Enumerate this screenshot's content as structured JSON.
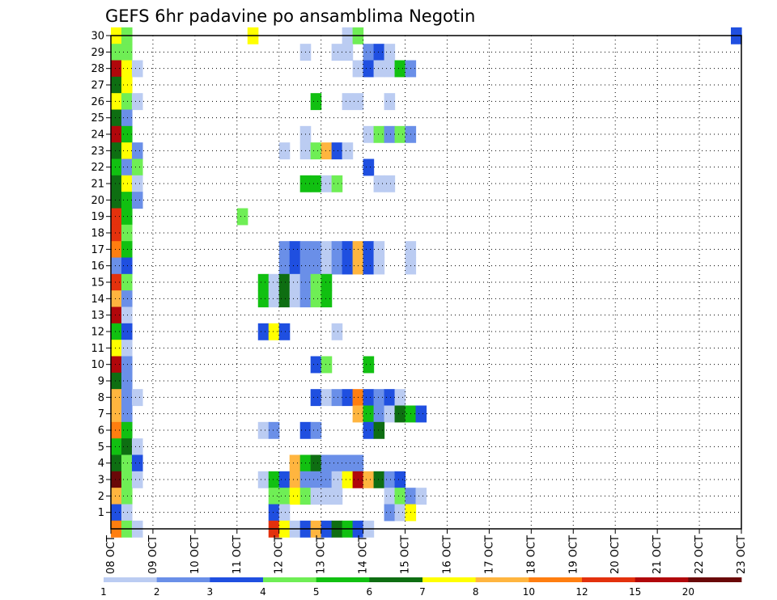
{
  "chart_data": {
    "type": "heatmap",
    "title": "GEFS 6hr padavine po ansamblima Negotin",
    "x_tick_labels": [
      "08 OCT",
      "09 OCT",
      "10 OCT",
      "11 OCT",
      "12 OCT",
      "13 OCT",
      "14 OCT",
      "15 OCT",
      "16 OCT",
      "17 OCT",
      "18 OCT",
      "19 OCT",
      "20 OCT",
      "21 OCT",
      "22 OCT",
      "23 OCT"
    ],
    "y_tick_labels": [
      "1",
      "2",
      "3",
      "4",
      "5",
      "6",
      "7",
      "8",
      "9",
      "10",
      "11",
      "12",
      "13",
      "14",
      "15",
      "16",
      "17",
      "18",
      "19",
      "20",
      "21",
      "22",
      "23",
      "24",
      "25",
      "26",
      "27",
      "28",
      "29",
      "30"
    ],
    "x_range_days": [
      0,
      15
    ],
    "y_range_members": [
      0,
      30
    ],
    "grid": "dotted",
    "legend": {
      "position": "bottom",
      "labels": [
        "1",
        "2",
        "3",
        "4",
        "5",
        "6",
        "7",
        "8",
        "10",
        "12",
        "15",
        "20"
      ],
      "colors": [
        "#BBCCF2",
        "#6A8FE8",
        "#1F4FE0",
        "#6FEE55",
        "#11C011",
        "#0E6E12",
        "#FFFF00",
        "#FFB53F",
        "#FF7E10",
        "#E3310D",
        "#B1070B",
        "#6A0808"
      ]
    },
    "colors": [
      "#BBCCF2",
      "#6A8FE8",
      "#1F4FE0",
      "#6FEE55",
      "#11C011",
      "#0E6E12",
      "#FFFF00",
      "#FFB53F",
      "#FF7E10",
      "#E3310D",
      "#B1070B",
      "#6A0808"
    ],
    "cell_days": 0.25,
    "cell_format": "[member, time_step_index (6h steps from 08 OCT 00z), color_class (1-12)]",
    "cells": [
      [
        30,
        0,
        7
      ],
      [
        30,
        1,
        4
      ],
      [
        30,
        13,
        7
      ],
      [
        30,
        22,
        1
      ],
      [
        30,
        23,
        4
      ],
      [
        30,
        59,
        3
      ],
      [
        29,
        0,
        4
      ],
      [
        29,
        1,
        4
      ],
      [
        29,
        18,
        1
      ],
      [
        29,
        21,
        1
      ],
      [
        29,
        22,
        1
      ],
      [
        29,
        24,
        2
      ],
      [
        29,
        25,
        3
      ],
      [
        29,
        26,
        1
      ],
      [
        28,
        0,
        11
      ],
      [
        28,
        1,
        7
      ],
      [
        28,
        2,
        1
      ],
      [
        28,
        23,
        1
      ],
      [
        28,
        24,
        3
      ],
      [
        28,
        25,
        1
      ],
      [
        28,
        26,
        1
      ],
      [
        28,
        27,
        5
      ],
      [
        28,
        28,
        2
      ],
      [
        27,
        0,
        6
      ],
      [
        27,
        1,
        7
      ],
      [
        26,
        0,
        7
      ],
      [
        26,
        1,
        4
      ],
      [
        26,
        2,
        1
      ],
      [
        26,
        19,
        5
      ],
      [
        26,
        22,
        1
      ],
      [
        26,
        23,
        1
      ],
      [
        26,
        26,
        1
      ],
      [
        25,
        0,
        6
      ],
      [
        25,
        1,
        2
      ],
      [
        24,
        0,
        11
      ],
      [
        24,
        1,
        5
      ],
      [
        24,
        18,
        1
      ],
      [
        24,
        24,
        1
      ],
      [
        24,
        25,
        4
      ],
      [
        24,
        26,
        2
      ],
      [
        24,
        27,
        4
      ],
      [
        24,
        28,
        2
      ],
      [
        23,
        0,
        6
      ],
      [
        23,
        1,
        7
      ],
      [
        23,
        2,
        2
      ],
      [
        23,
        16,
        1
      ],
      [
        23,
        18,
        1
      ],
      [
        23,
        19,
        4
      ],
      [
        23,
        20,
        8
      ],
      [
        23,
        21,
        3
      ],
      [
        23,
        22,
        1
      ],
      [
        22,
        0,
        5
      ],
      [
        22,
        1,
        2
      ],
      [
        22,
        2,
        4
      ],
      [
        22,
        24,
        3
      ],
      [
        21,
        0,
        6
      ],
      [
        21,
        1,
        7
      ],
      [
        21,
        2,
        1
      ],
      [
        21,
        18,
        5
      ],
      [
        21,
        19,
        5
      ],
      [
        21,
        20,
        1
      ],
      [
        21,
        21,
        4
      ],
      [
        21,
        25,
        1
      ],
      [
        21,
        26,
        1
      ],
      [
        20,
        0,
        6
      ],
      [
        20,
        1,
        5
      ],
      [
        20,
        2,
        2
      ],
      [
        19,
        0,
        10
      ],
      [
        19,
        1,
        5
      ],
      [
        19,
        12,
        4
      ],
      [
        18,
        0,
        10
      ],
      [
        18,
        1,
        4
      ],
      [
        17,
        0,
        9
      ],
      [
        17,
        1,
        5
      ],
      [
        17,
        16,
        2
      ],
      [
        17,
        17,
        3
      ],
      [
        17,
        18,
        2
      ],
      [
        17,
        19,
        2
      ],
      [
        17,
        20,
        1
      ],
      [
        17,
        21,
        2
      ],
      [
        17,
        22,
        3
      ],
      [
        17,
        23,
        8
      ],
      [
        17,
        24,
        3
      ],
      [
        17,
        25,
        1
      ],
      [
        17,
        28,
        1
      ],
      [
        16,
        0,
        2
      ],
      [
        16,
        1,
        3
      ],
      [
        16,
        16,
        2
      ],
      [
        16,
        17,
        3
      ],
      [
        16,
        18,
        2
      ],
      [
        16,
        19,
        2
      ],
      [
        16,
        20,
        1
      ],
      [
        16,
        21,
        2
      ],
      [
        16,
        22,
        3
      ],
      [
        16,
        23,
        8
      ],
      [
        16,
        24,
        3
      ],
      [
        16,
        25,
        1
      ],
      [
        16,
        28,
        1
      ],
      [
        15,
        0,
        10
      ],
      [
        15,
        1,
        4
      ],
      [
        15,
        14,
        5
      ],
      [
        15,
        15,
        1
      ],
      [
        15,
        16,
        6
      ],
      [
        15,
        17,
        1
      ],
      [
        15,
        18,
        2
      ],
      [
        15,
        19,
        4
      ],
      [
        15,
        20,
        5
      ],
      [
        14,
        0,
        8
      ],
      [
        14,
        1,
        2
      ],
      [
        14,
        14,
        5
      ],
      [
        14,
        15,
        1
      ],
      [
        14,
        16,
        6
      ],
      [
        14,
        17,
        1
      ],
      [
        14,
        18,
        2
      ],
      [
        14,
        19,
        4
      ],
      [
        14,
        20,
        5
      ],
      [
        13,
        0,
        11
      ],
      [
        13,
        1,
        1
      ],
      [
        12,
        0,
        5
      ],
      [
        12,
        1,
        3
      ],
      [
        12,
        14,
        3
      ],
      [
        12,
        15,
        7
      ],
      [
        12,
        16,
        3
      ],
      [
        12,
        21,
        1
      ],
      [
        11,
        0,
        7
      ],
      [
        11,
        1,
        1
      ],
      [
        10,
        0,
        11
      ],
      [
        10,
        1,
        2
      ],
      [
        10,
        19,
        3
      ],
      [
        10,
        20,
        4
      ],
      [
        10,
        24,
        5
      ],
      [
        9,
        0,
        6
      ],
      [
        9,
        1,
        2
      ],
      [
        8,
        0,
        8
      ],
      [
        8,
        1,
        2
      ],
      [
        8,
        2,
        1
      ],
      [
        8,
        19,
        3
      ],
      [
        8,
        20,
        1
      ],
      [
        8,
        21,
        2
      ],
      [
        8,
        22,
        3
      ],
      [
        8,
        23,
        9
      ],
      [
        8,
        24,
        3
      ],
      [
        8,
        25,
        2
      ],
      [
        8,
        26,
        3
      ],
      [
        8,
        27,
        1
      ],
      [
        7,
        0,
        8
      ],
      [
        7,
        1,
        2
      ],
      [
        7,
        23,
        8
      ],
      [
        7,
        24,
        5
      ],
      [
        7,
        25,
        2
      ],
      [
        7,
        26,
        1
      ],
      [
        7,
        27,
        6
      ],
      [
        7,
        28,
        5
      ],
      [
        7,
        29,
        3
      ],
      [
        6,
        0,
        9
      ],
      [
        6,
        1,
        5
      ],
      [
        6,
        14,
        1
      ],
      [
        6,
        15,
        2
      ],
      [
        6,
        18,
        3
      ],
      [
        6,
        19,
        2
      ],
      [
        6,
        24,
        3
      ],
      [
        6,
        25,
        6
      ],
      [
        5,
        0,
        5
      ],
      [
        5,
        1,
        6
      ],
      [
        5,
        2,
        1
      ],
      [
        4,
        0,
        6
      ],
      [
        4,
        1,
        4
      ],
      [
        4,
        2,
        3
      ],
      [
        4,
        17,
        8
      ],
      [
        4,
        18,
        5
      ],
      [
        4,
        19,
        6
      ],
      [
        4,
        20,
        2
      ],
      [
        4,
        21,
        2
      ],
      [
        4,
        22,
        2
      ],
      [
        4,
        23,
        2
      ],
      [
        3,
        0,
        12
      ],
      [
        3,
        1,
        4
      ],
      [
        3,
        2,
        1
      ],
      [
        3,
        14,
        1
      ],
      [
        3,
        15,
        5
      ],
      [
        3,
        16,
        3
      ],
      [
        3,
        17,
        8
      ],
      [
        3,
        18,
        2
      ],
      [
        3,
        19,
        2
      ],
      [
        3,
        20,
        2
      ],
      [
        3,
        21,
        1
      ],
      [
        3,
        22,
        7
      ],
      [
        3,
        23,
        11
      ],
      [
        3,
        24,
        8
      ],
      [
        3,
        25,
        6
      ],
      [
        3,
        26,
        2
      ],
      [
        3,
        27,
        3
      ],
      [
        2,
        0,
        8
      ],
      [
        2,
        1,
        4
      ],
      [
        2,
        15,
        4
      ],
      [
        2,
        16,
        4
      ],
      [
        2,
        17,
        7
      ],
      [
        2,
        18,
        4
      ],
      [
        2,
        19,
        1
      ],
      [
        2,
        20,
        1
      ],
      [
        2,
        21,
        1
      ],
      [
        2,
        26,
        1
      ],
      [
        2,
        27,
        4
      ],
      [
        2,
        28,
        2
      ],
      [
        2,
        29,
        1
      ],
      [
        1,
        0,
        3
      ],
      [
        1,
        1,
        1
      ],
      [
        1,
        15,
        3
      ],
      [
        1,
        16,
        1
      ],
      [
        1,
        26,
        2
      ],
      [
        1,
        27,
        1
      ],
      [
        1,
        28,
        7
      ],
      [
        0,
        0,
        9
      ],
      [
        0,
        1,
        4
      ],
      [
        0,
        2,
        1
      ],
      [
        0,
        15,
        10
      ],
      [
        0,
        16,
        7
      ],
      [
        0,
        17,
        1
      ],
      [
        0,
        18,
        3
      ],
      [
        0,
        19,
        8
      ],
      [
        0,
        20,
        3
      ],
      [
        0,
        21,
        6
      ],
      [
        0,
        22,
        5
      ],
      [
        0,
        23,
        3
      ],
      [
        0,
        24,
        1
      ]
    ]
  }
}
